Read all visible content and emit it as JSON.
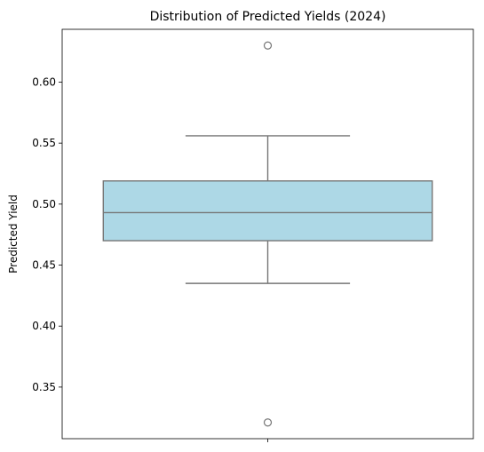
{
  "chart_data": {
    "type": "box",
    "title": "Distribution of Predicted Yields (2024)",
    "xlabel": "",
    "ylabel": "Predicted Yield",
    "ylim": [
      0.3077,
      0.6433
    ],
    "yticks": [
      0.35,
      0.4,
      0.45,
      0.5,
      0.55,
      0.6
    ],
    "ytick_labels": [
      "0.35",
      "0.40",
      "0.45",
      "0.50",
      "0.55",
      "0.60"
    ],
    "grid": false,
    "series": [
      {
        "whisker_low": 0.435,
        "q1": 0.47,
        "median": 0.493,
        "q3": 0.519,
        "whisker_high": 0.556,
        "outliers": [
          0.63,
          0.321
        ]
      }
    ],
    "colors": {
      "box_fill": "#add8e6",
      "lines": "#767676",
      "axes": "#000000"
    }
  }
}
